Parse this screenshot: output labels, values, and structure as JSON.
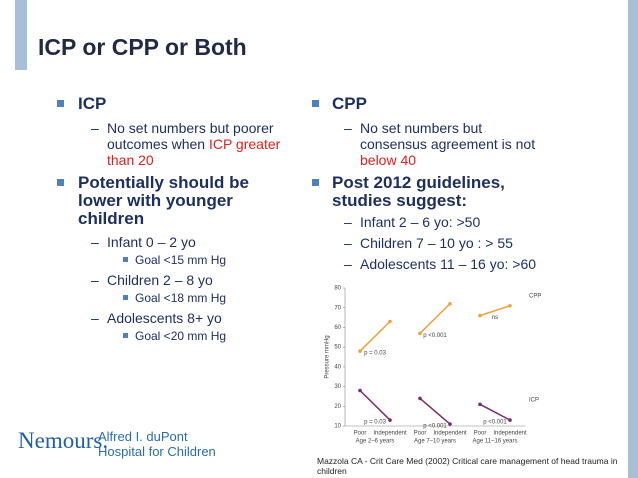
{
  "slide": {
    "title": "ICP or CPP or Both",
    "left": {
      "heading": "ICP",
      "note_text": "No set numbers but poorer outcomes when ",
      "note_highlight": "ICP greater than 20",
      "heading2": "Potentially should be lower with younger children",
      "items": [
        {
          "label": "Infant 0 – 2 yo",
          "goal": "Goal <15 mm Hg"
        },
        {
          "label": "Children 2 – 8 yo",
          "goal": "Goal <18 mm Hg"
        },
        {
          "label": "Adolescents 8+ yo",
          "goal": "Goal <20 mm Hg"
        }
      ]
    },
    "right": {
      "heading": "CPP",
      "note_text": "No set numbers but consensus agreement is not ",
      "note_highlight": "below 40",
      "heading2": "Post 2012 guidelines, studies suggest:",
      "items": [
        "Infant 2 – 6 yo: >50",
        "Children 7 – 10 yo : > 55",
        "Adolescents 11 – 16 yo: >60"
      ]
    },
    "citation": "Mazzola CA - Crit Care Med (2002) Critical care management of head trauma in children",
    "logo": {
      "name": "Nemours.",
      "line1": "Alfred I. duPont",
      "line2": "Hospital for Children"
    }
  },
  "chart_data": {
    "type": "line",
    "ylabel": "Pressure mmHg",
    "ylim": [
      10,
      80
    ],
    "yticks": [
      10,
      20,
      30,
      40,
      50,
      60,
      70,
      80
    ],
    "categories": [
      "Poor",
      "Independent",
      "Poor",
      "Independent",
      "Poor",
      "Independent"
    ],
    "groups": [
      "Age 2–6 years",
      "Age 7–10 years",
      "Age 11–16 years"
    ],
    "series": [
      {
        "name": "CPP",
        "color": "#e9a43c",
        "values": [
          48,
          63,
          57,
          72,
          66,
          71
        ],
        "p_labels": [
          "p = 0.03",
          "p <0.001",
          "ns"
        ]
      },
      {
        "name": "ICP",
        "color": "#7a2a6f",
        "values": [
          28,
          13,
          24,
          11,
          21,
          13
        ],
        "p_labels": [
          "p = 0.03",
          "p <0.001",
          "p <0.001"
        ]
      }
    ]
  }
}
